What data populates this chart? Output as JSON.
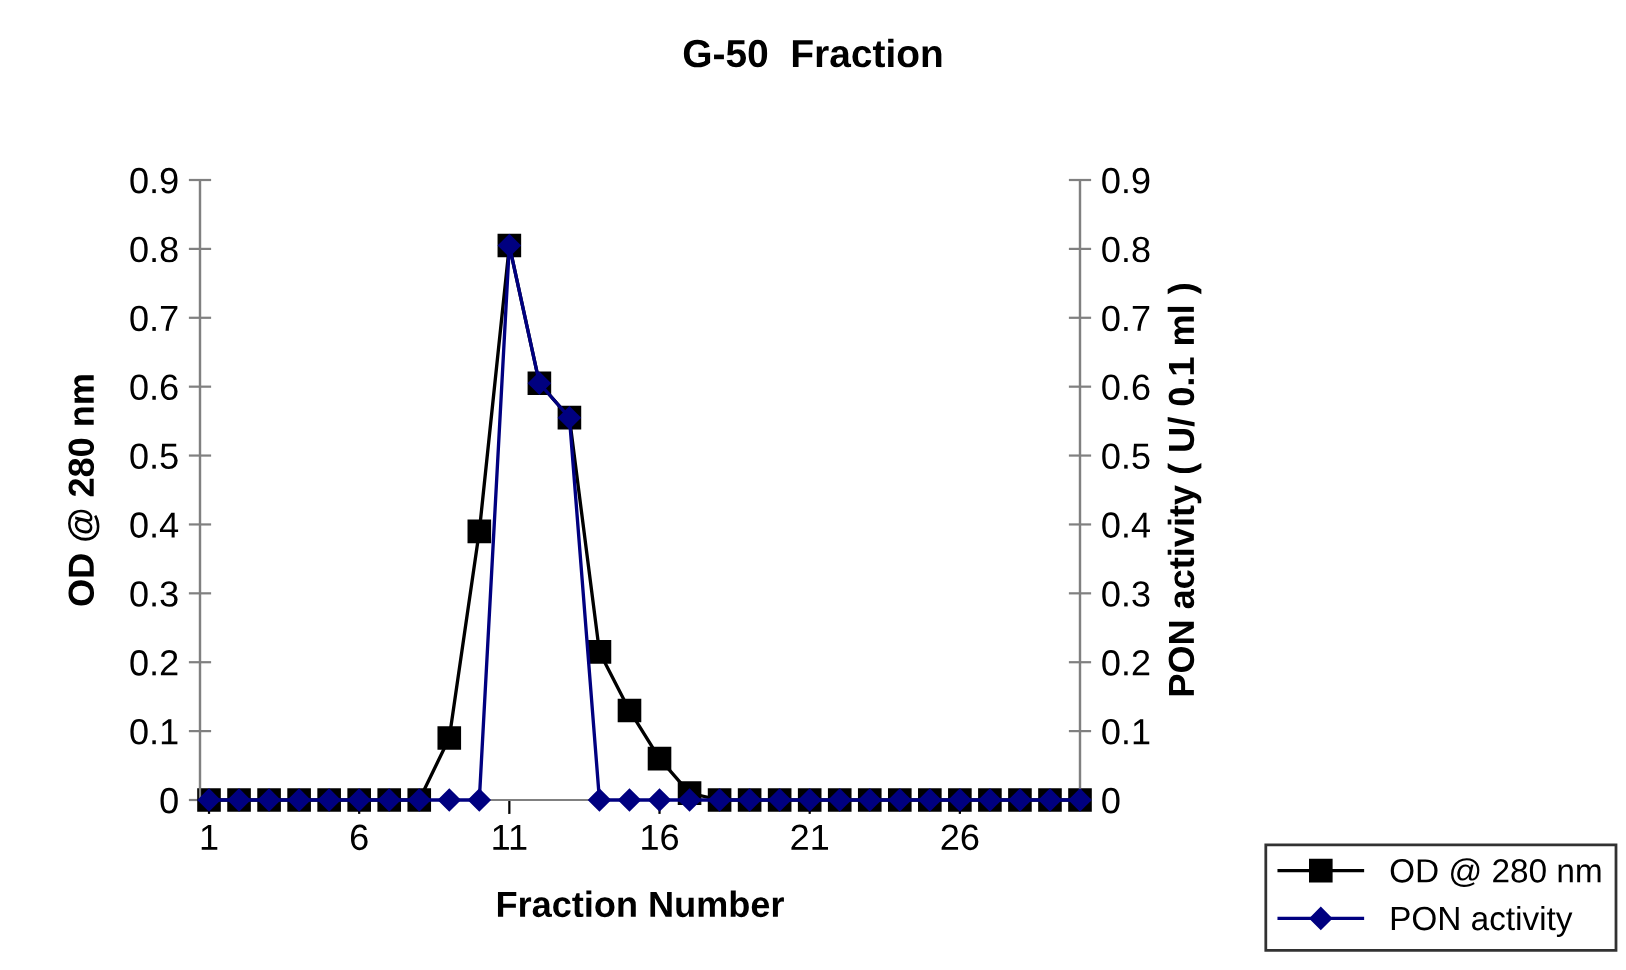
{
  "chart_data": {
    "type": "line",
    "title": "G-50  Fraction",
    "xlabel": "Fraction Number",
    "ylabel": "OD @ 280 nm",
    "y2label": "PON activity ( U/ 0.1 ml )",
    "x": [
      1,
      2,
      3,
      4,
      5,
      6,
      7,
      8,
      9,
      10,
      11,
      12,
      13,
      14,
      15,
      16,
      17,
      18,
      19,
      20,
      21,
      22,
      23,
      24,
      25,
      26,
      27,
      28,
      29,
      30
    ],
    "series": [
      {
        "name": "OD @ 280 nm",
        "color": "#000000",
        "marker": "square",
        "values": [
          0,
          0,
          0,
          0,
          0,
          0,
          0,
          0,
          0.09,
          0.39,
          0.805,
          0.605,
          0.555,
          0.215,
          0.13,
          0.06,
          0.01,
          0,
          0,
          0,
          0,
          0,
          0,
          0,
          0,
          0,
          0,
          0,
          0,
          0
        ]
      },
      {
        "name": "PON activity",
        "color": "#000080",
        "marker": "diamond",
        "axis": "y2",
        "values": [
          0,
          0,
          0,
          0,
          0,
          0,
          0,
          0,
          0,
          0,
          0.805,
          0.605,
          0.555,
          0,
          0,
          0,
          0,
          0,
          0,
          0,
          0,
          0,
          0,
          0,
          0,
          0,
          0,
          0,
          0,
          0
        ]
      }
    ],
    "xlim": [
      0.7,
      30
    ],
    "xticks": [
      1,
      6,
      11,
      16,
      21,
      26
    ],
    "ylim": [
      0,
      0.9
    ],
    "yticks": [
      0,
      0.1,
      0.2,
      0.3,
      0.4,
      0.5,
      0.6,
      0.7,
      0.8,
      0.9
    ],
    "y2lim": [
      0,
      0.9
    ],
    "y2ticks": [
      0,
      0.1,
      0.2,
      0.3,
      0.4,
      0.5,
      0.6,
      0.7,
      0.8,
      0.9
    ],
    "grid": false,
    "legend": "bottom right"
  }
}
